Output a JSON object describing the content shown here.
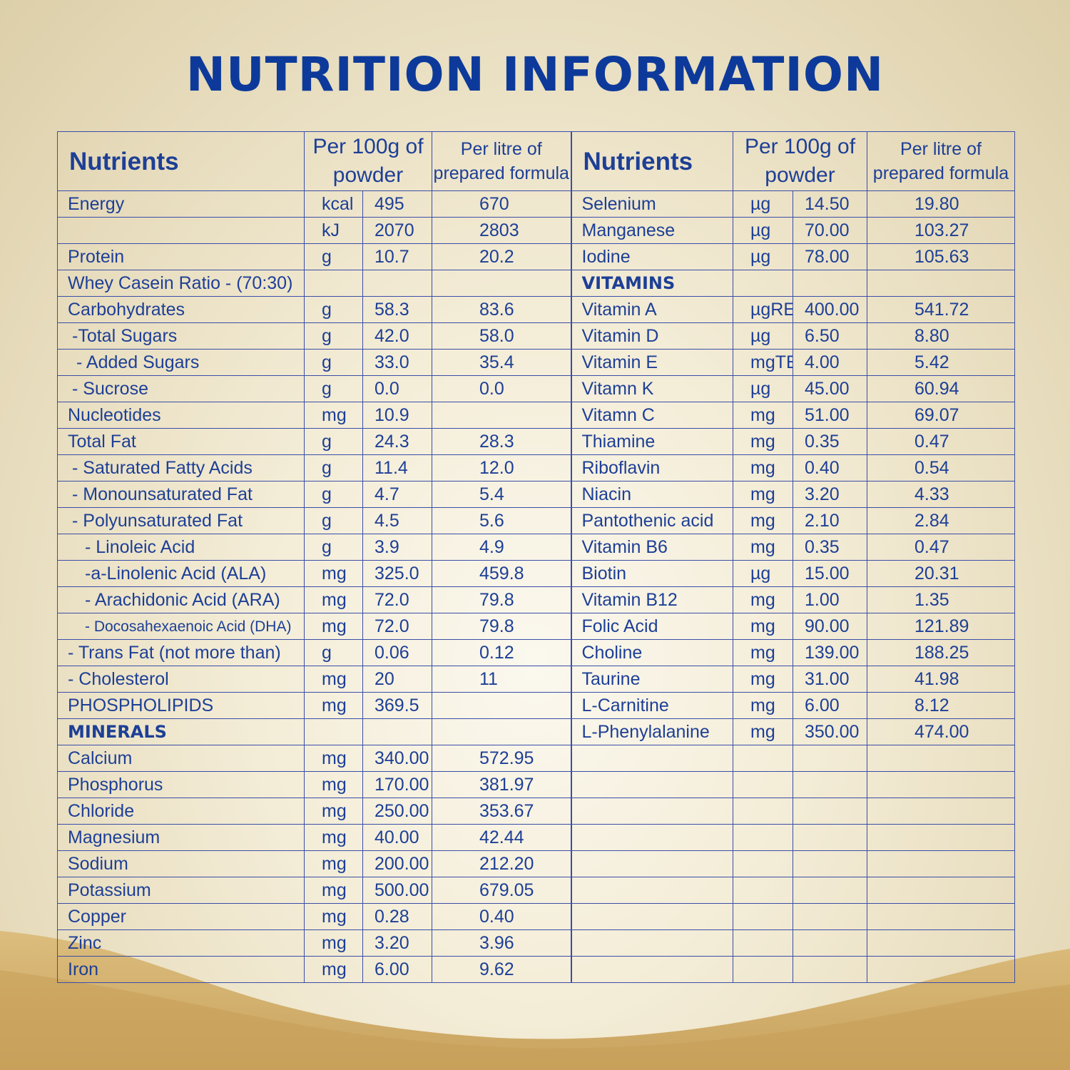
{
  "title": "NUTRITION INFORMATION",
  "headers": {
    "nutrients": "Nutrients",
    "per_100g": "Per 100g of powder",
    "per_litre": "Per litre of prepared formula"
  },
  "left": [
    {
      "name": "Energy",
      "unit": "kcal",
      "per100g": "495",
      "perLitre": "670"
    },
    {
      "name": "",
      "unit": "kJ",
      "per100g": "2070",
      "perLitre": "2803"
    },
    {
      "name": "Protein",
      "unit": "g",
      "per100g": "10.7",
      "perLitre": "20.2"
    },
    {
      "name": "Whey Casein Ratio - (70:30)",
      "unit": "",
      "per100g": "",
      "perLitre": ""
    },
    {
      "name": "Carbohydrates",
      "unit": "g",
      "per100g": "58.3",
      "perLitre": "83.6"
    },
    {
      "name": "-Total Sugars",
      "unit": "g",
      "per100g": "42.0",
      "perLitre": "58.0"
    },
    {
      "name": "- Added Sugars",
      "unit": "g",
      "per100g": "33.0",
      "perLitre": "35.4"
    },
    {
      "name": "- Sucrose",
      "unit": "g",
      "per100g": "0.0",
      "perLitre": "0.0"
    },
    {
      "name": "Nucleotides",
      "unit": "mg",
      "per100g": "10.9",
      "perLitre": ""
    },
    {
      "name": "Total Fat",
      "unit": "g",
      "per100g": "24.3",
      "perLitre": "28.3"
    },
    {
      "name": "- Saturated Fatty Acids",
      "unit": "g",
      "per100g": "11.4",
      "perLitre": "12.0"
    },
    {
      "name": "- Monounsaturated Fat",
      "unit": "g",
      "per100g": "4.7",
      "perLitre": "5.4"
    },
    {
      "name": "- Polyunsaturated Fat",
      "unit": "g",
      "per100g": "4.5",
      "perLitre": "5.6"
    },
    {
      "name": "- Linoleic Acid",
      "unit": "g",
      "per100g": "3.9",
      "perLitre": "4.9"
    },
    {
      "name": "-a-Linolenic Acid (ALA)",
      "unit": "mg",
      "per100g": "325.0",
      "perLitre": "459.8"
    },
    {
      "name": "- Arachidonic Acid (ARA)",
      "unit": "mg",
      "per100g": "72.0",
      "perLitre": "79.8"
    },
    {
      "name": "- Docosahexaenoic Acid (DHA)",
      "unit": "mg",
      "per100g": "72.0",
      "perLitre": "79.8"
    },
    {
      "name": "- Trans Fat (not more than)",
      "unit": "g",
      "per100g": "0.06",
      "perLitre": "0.12"
    },
    {
      "name": "- Cholesterol",
      "unit": "mg",
      "per100g": "20",
      "perLitre": "11"
    },
    {
      "name": "PHOSPHOLIPIDS",
      "unit": "mg",
      "per100g": "369.5",
      "perLitre": ""
    },
    {
      "name": "MINERALS",
      "unit": "",
      "per100g": "",
      "perLitre": ""
    },
    {
      "name": "Calcium",
      "unit": "mg",
      "per100g": "340.00",
      "perLitre": "572.95"
    },
    {
      "name": "Phosphorus",
      "unit": "mg",
      "per100g": "170.00",
      "perLitre": "381.97"
    },
    {
      "name": "Chloride",
      "unit": "mg",
      "per100g": "250.00",
      "perLitre": "353.67"
    },
    {
      "name": "Magnesium",
      "unit": "mg",
      "per100g": "40.00",
      "perLitre": "42.44"
    },
    {
      "name": "Sodium",
      "unit": "mg",
      "per100g": "200.00",
      "perLitre": "212.20"
    },
    {
      "name": "Potassium",
      "unit": "mg",
      "per100g": "500.00",
      "perLitre": "679.05"
    },
    {
      "name": "Copper",
      "unit": "mg",
      "per100g": "0.28",
      "perLitre": "0.40"
    },
    {
      "name": "Zinc",
      "unit": "mg",
      "per100g": "3.20",
      "perLitre": "3.96"
    },
    {
      "name": "Iron",
      "unit": "mg",
      "per100g": "6.00",
      "perLitre": "9.62"
    }
  ],
  "right": [
    {
      "name": "Selenium",
      "unit": "µg",
      "per100g": "14.50",
      "perLitre": "19.80"
    },
    {
      "name": "Manganese",
      "unit": "µg",
      "per100g": "70.00",
      "perLitre": "103.27"
    },
    {
      "name": "Iodine",
      "unit": "µg",
      "per100g": "78.00",
      "perLitre": "105.63"
    },
    {
      "name": "VITAMINS",
      "unit": "",
      "per100g": "",
      "perLitre": ""
    },
    {
      "name": "Vitamin A",
      "unit": "µgRE",
      "per100g": "400.00",
      "perLitre": "541.72"
    },
    {
      "name": "Vitamin D",
      "unit": "µg",
      "per100g": "6.50",
      "perLitre": "8.80"
    },
    {
      "name": "Vitamin E",
      "unit": "mgTE",
      "per100g": "4.00",
      "perLitre": "5.42"
    },
    {
      "name": "Vitamn K",
      "unit": "µg",
      "per100g": "45.00",
      "perLitre": "60.94"
    },
    {
      "name": "Vitamn C",
      "unit": "mg",
      "per100g": "51.00",
      "perLitre": "69.07"
    },
    {
      "name": "Thiamine",
      "unit": "mg",
      "per100g": "0.35",
      "perLitre": "0.47"
    },
    {
      "name": "Riboflavin",
      "unit": "mg",
      "per100g": "0.40",
      "perLitre": "0.54"
    },
    {
      "name": "Niacin",
      "unit": "mg",
      "per100g": "3.20",
      "perLitre": "4.33"
    },
    {
      "name": "Pantothenic acid",
      "unit": "mg",
      "per100g": "2.10",
      "perLitre": "2.84"
    },
    {
      "name": "Vitamin B6",
      "unit": "mg",
      "per100g": "0.35",
      "perLitre": "0.47"
    },
    {
      "name": "Biotin",
      "unit": "µg",
      "per100g": "15.00",
      "perLitre": "20.31"
    },
    {
      "name": "Vitamin B12",
      "unit": "mg",
      "per100g": "1.00",
      "perLitre": "1.35"
    },
    {
      "name": "Folic Acid",
      "unit": "mg",
      "per100g": "90.00",
      "perLitre": "121.89"
    },
    {
      "name": "Choline",
      "unit": "mg",
      "per100g": "139.00",
      "perLitre": "188.25"
    },
    {
      "name": "Taurine",
      "unit": "mg",
      "per100g": "31.00",
      "perLitre": "41.98"
    },
    {
      "name": "L-Carnitine",
      "unit": "mg",
      "per100g": "6.00",
      "perLitre": "8.12"
    },
    {
      "name": "L-Phenylalanine",
      "unit": "mg",
      "per100g": "350.00",
      "perLitre": "474.00"
    }
  ],
  "colors": {
    "title": "#0d3a9a",
    "text": "#1d3f96",
    "grid": "#3a4ea8",
    "background": "#f3ecd6",
    "swoosh": "#cda764"
  }
}
